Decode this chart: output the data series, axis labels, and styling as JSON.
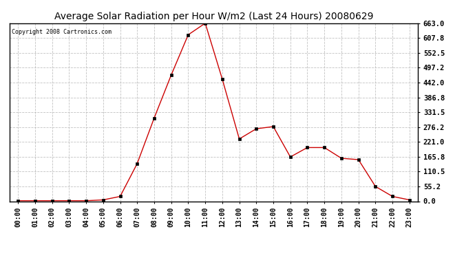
{
  "title": "Average Solar Radiation per Hour W/m2 (Last 24 Hours) 20080629",
  "copyright": "Copyright 2008 Cartronics.com",
  "hours": [
    0,
    1,
    2,
    3,
    4,
    5,
    6,
    7,
    8,
    9,
    10,
    11,
    12,
    13,
    14,
    15,
    16,
    17,
    18,
    19,
    20,
    21,
    22,
    23
  ],
  "values": [
    2,
    2,
    2,
    2,
    2,
    5,
    18,
    140,
    310,
    470,
    620,
    663,
    455,
    232,
    270,
    278,
    165,
    200,
    200,
    160,
    155,
    55,
    18,
    5
  ],
  "line_color": "#cc0000",
  "marker_size": 3,
  "background_color": "#ffffff",
  "grid_color": "#bbbbbb",
  "yticks": [
    0.0,
    55.2,
    110.5,
    165.8,
    221.0,
    276.2,
    331.5,
    386.8,
    442.0,
    497.2,
    552.5,
    607.8,
    663.0
  ],
  "ymax": 663.0,
  "ymin": 0.0,
  "xlabel_fontsize": 7,
  "ylabel_fontsize": 7.5,
  "title_fontsize": 10,
  "copyright_fontsize": 6
}
